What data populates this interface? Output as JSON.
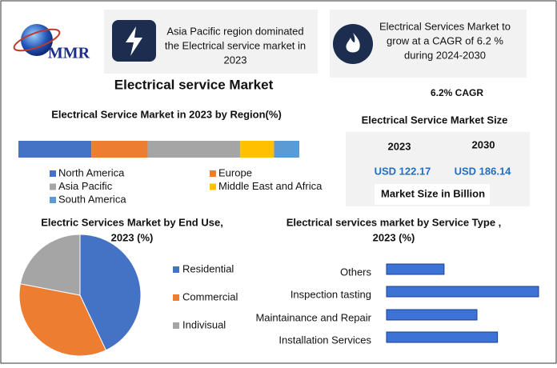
{
  "header": {
    "logo_text": "MMR",
    "box1": [
      "Asia Pacific region dominated",
      "the Electrical service market in",
      "2023"
    ],
    "box2": [
      "Electrical Services Market to",
      "grow at a CAGR of 6.2 %",
      "during 2024-2030"
    ]
  },
  "title": "Electrical service Market",
  "cagr_label": "6.2% CAGR",
  "market_size": {
    "title": "Electrical Service Market Size",
    "years": [
      "2023",
      "2030"
    ],
    "values": [
      "USD 122.17",
      "USD 186.14"
    ],
    "unit_label": "Market Size in Billion"
  },
  "chart_data": [
    {
      "type": "stacked_bar",
      "title": "Electrical Service Market in 2023 by Region(%)",
      "series": [
        {
          "name": "North America",
          "color": "#4472c4",
          "values": [
            26
          ]
        },
        {
          "name": "Europe",
          "color": "#ed7d31",
          "values": [
            20
          ]
        },
        {
          "name": "Asia Pacific",
          "color": "#a5a5a5",
          "values": [
            33
          ]
        },
        {
          "name": "Middle East and Africa",
          "color": "#ffc000",
          "values": [
            12
          ]
        },
        {
          "name": "South America",
          "color": "#5b9bd5",
          "values": [
            9
          ]
        }
      ]
    },
    {
      "type": "pie",
      "title": [
        "Electric Services Market by End Use,",
        "2023  (%)"
      ],
      "categories": [
        "Residential",
        "Commercial",
        "Indivisual"
      ],
      "values": [
        43,
        35,
        22
      ],
      "colors": [
        "#4472c4",
        "#ed7d31",
        "#a5a5a5"
      ]
    },
    {
      "type": "hbar",
      "title": [
        "Electrical services market by Service Type ,",
        "2023  (%)"
      ],
      "categories": [
        "Others",
        "Inspection tasting",
        "Maintainance and Repair",
        "Installation Services"
      ],
      "values": [
        14,
        37,
        22,
        27
      ],
      "color": "#3d72d6"
    }
  ]
}
